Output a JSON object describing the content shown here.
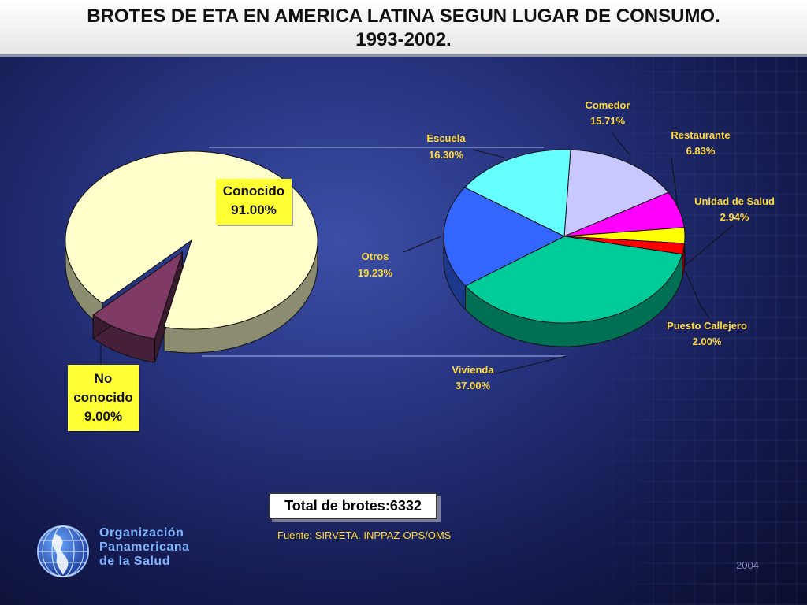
{
  "title": {
    "line1": "BROTES DE ETA EN AMERICA LATINA SEGUN LUGAR DE CONSUMO.",
    "line2": "1993-2002."
  },
  "chart_data": [
    {
      "type": "pie",
      "slices": [
        {
          "label": "Conocido",
          "value_label": "91.00%",
          "value": 91.0,
          "color": "#ffffcc"
        },
        {
          "label": "No conocido",
          "value_label": "9.00%",
          "value": 9.0,
          "color": "#7f3a66"
        }
      ]
    },
    {
      "type": "pie",
      "slices": [
        {
          "label": "Comedor",
          "value_label": "15.71%",
          "value": 15.71,
          "color": "#c8c8ff"
        },
        {
          "label": "Restaurante",
          "value_label": "6.83%",
          "value": 6.83,
          "color": "#ff00ff"
        },
        {
          "label": "Unidad de Salud",
          "value_label": "2.94%",
          "value": 2.94,
          "color": "#ffff00"
        },
        {
          "label": "Puesto Callejero",
          "value_label": "2.00%",
          "value": 2.0,
          "color": "#ff0000"
        },
        {
          "label": "Vivienda",
          "value_label": "37.00%",
          "value": 37.0,
          "color": "#00cc99"
        },
        {
          "label": "Otros",
          "value_label": "19.23%",
          "value": 19.23,
          "color": "#3366ff"
        },
        {
          "label": "Escuela",
          "value_label": "16.30%",
          "value": 16.3,
          "color": "#66ffff"
        }
      ]
    }
  ],
  "total_label": "Total de brotes:6332",
  "source": "Fuente: SIRVETA. INPPAZ-OPS/OMS",
  "logo": {
    "line1": "Organización",
    "line2": "Panamericana",
    "line3": "de la Salud"
  },
  "year": "2004"
}
